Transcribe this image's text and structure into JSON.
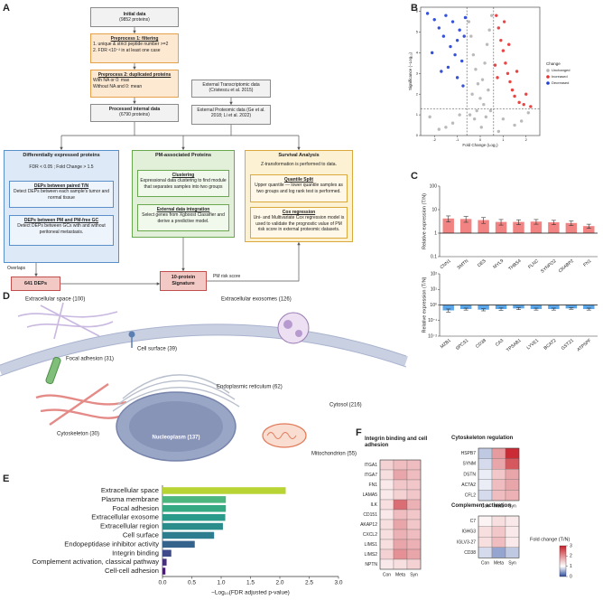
{
  "panel_labels": [
    "A",
    "B",
    "C",
    "D",
    "E",
    "F"
  ],
  "flowchart": {
    "initial": {
      "title": "Initial data",
      "count": "(9852 proteins)"
    },
    "preprocess1": {
      "title": "Preprocess 1: filtering",
      "steps": [
        "1. unique & strict peptide number >=2",
        "2. FDR <10⁻² in at least one case"
      ]
    },
    "preprocess2": {
      "title": "Preprocess 2: duplicated proteins",
      "steps": [
        "With NA or 0: max",
        "Without NA and 0: mean"
      ]
    },
    "external_transcriptomic": "External Transcriptomic data (Cristescu et al. 2015)",
    "processed": {
      "title": "Processed internal data",
      "count": "(6790 proteins)"
    },
    "external_proteomic": "External Proteomic data (Ge et al. 2018; Li et al. 2022)",
    "dep": {
      "title": "Differentially expressed proteins",
      "criteria": "FDR < 0.05 ; Fold Change > 1.5",
      "boxes": [
        {
          "title": "DEPs between paired T/N",
          "text": "Detect DEPs between each sample's tumor and normal tissue"
        },
        {
          "title": "DEPs between PM and PM-free GC",
          "text": "Detect DEPs between GCs with and without peritoneal metastasis."
        }
      ]
    },
    "pm": {
      "title": "PM-associated Proteins",
      "boxes": [
        {
          "title": "Clustering",
          "text": "Expressional data clustering to find module that separates samples into two groups"
        },
        {
          "title": "External data integration",
          "text": "Select genes from Xgboost Classifier and derive a predictive model."
        }
      ]
    },
    "survival": {
      "title": "Survival Analysis",
      "text": "Z-transformation is performed to data.",
      "boxes": [
        {
          "title": "Quantile Split",
          "text": "Upper quantile — lower quantile samples as two groups and log rank test is performed."
        },
        {
          "title": "Cox regression",
          "text": "Uni- and Multivariate Cox regression model is used to validate the prognostic value of PM risk score in external proteomic datasets."
        }
      ]
    },
    "overlaps": "Overlaps",
    "deps": "641 DEPs",
    "signature": "10-protein Signature",
    "risk_score": "PM risk score"
  },
  "cell_diagram": {
    "labels": [
      "Extracellular space (100)",
      "Extracellular exosomes (126)",
      "Cell surface (39)",
      "Focal adhesion (31)",
      "Endoplasmic reticulum (62)",
      "Cytosol (216)",
      "Cytoskeleton (30)",
      "Nucleoplasm (137)",
      "Mitochondrion (55)"
    ]
  },
  "chart_data": [
    {
      "type": "scatter",
      "xlabel": "Fold Change (Log₂)",
      "ylabel": "Significance (−Log₁₀)",
      "xlim": [
        -2.6,
        2.6
      ],
      "xticks": [
        -2,
        -1,
        0,
        1,
        2
      ],
      "ylim": [
        0,
        6.2
      ],
      "yticks": [
        0,
        1,
        2,
        3,
        4,
        5,
        6
      ],
      "thresholds": {
        "x": [
          -0.585,
          0.585
        ],
        "y": 1.3
      },
      "legend_title": "Change",
      "legend": "right",
      "series": [
        {
          "name": "Unchanged",
          "color": "#b3b3b3",
          "x": [
            -0.5,
            -0.4,
            -0.3,
            -0.2,
            -0.1,
            0,
            0.1,
            0.2,
            0.3,
            0.4,
            0.5,
            -0.45,
            -0.25,
            0.05,
            0.25,
            0.45,
            -1.2,
            -1.8,
            -2.2,
            1.0,
            1.5,
            2.1,
            -0.9,
            0.8,
            -0.35,
            0.35,
            -0.15,
            0.15,
            -1.5,
            1.8
          ],
          "y": [
            5.5,
            4.8,
            3.9,
            3.2,
            2.5,
            1.8,
            2.7,
            3.5,
            4.4,
            5.1,
            5.8,
            1.0,
            0.8,
            0.4,
            0.9,
            1.2,
            0.6,
            0.3,
            0.9,
            0.8,
            0.5,
            1.1,
            1.0,
            0.2,
            2.0,
            2.2,
            1.2,
            1.5,
            0.4,
            0.7
          ]
        },
        {
          "name": "Increased",
          "color": "#e8302f",
          "x": [
            0.7,
            0.8,
            0.9,
            1.0,
            1.1,
            1.2,
            1.3,
            1.4,
            1.5,
            1.7,
            1.9,
            2.2,
            0.75,
            1.05,
            1.25,
            0.65,
            1.6,
            2.0
          ],
          "y": [
            5.8,
            5.2,
            4.6,
            4.1,
            3.5,
            3.0,
            2.6,
            2.2,
            1.9,
            1.6,
            1.5,
            1.4,
            2.8,
            5.5,
            4.4,
            3.4,
            3.1,
            2.0
          ]
        },
        {
          "name": "Decreased",
          "color": "#1f3fd4",
          "x": [
            -2.3,
            -2.0,
            -1.8,
            -1.6,
            -1.5,
            -1.3,
            -1.2,
            -1.1,
            -1.0,
            -0.9,
            -0.8,
            -0.7,
            -2.1,
            -1.7,
            -1.4,
            -1.0,
            -0.75,
            -0.65
          ],
          "y": [
            5.9,
            5.6,
            5.2,
            4.8,
            5.8,
            4.3,
            5.5,
            3.9,
            4.6,
            5.1,
            3.6,
            4.8,
            4.0,
            3.1,
            3.3,
            2.8,
            2.4,
            5.7
          ]
        }
      ]
    },
    {
      "type": "bar",
      "ylabel": "Relative expression (T/N)",
      "log_scale": true,
      "ylim": [
        0.1,
        100
      ],
      "yticks": [
        0.1,
        1,
        10,
        100
      ],
      "baseline": 1,
      "color": "#ef6f6c",
      "categories": [
        "CNN1",
        "SMTN",
        "DES",
        "MYL9",
        "THBS4",
        "FLNC",
        "SYNPO2",
        "CRABP2",
        "FN1"
      ],
      "values": [
        4.2,
        4.0,
        3.6,
        3.0,
        3.0,
        3.1,
        2.9,
        2.7,
        2.0
      ],
      "errors": [
        1.2,
        1.1,
        1.0,
        0.8,
        0.7,
        0.7,
        0.6,
        0.6,
        0.4
      ]
    },
    {
      "type": "bar",
      "ylabel": "Relative expression (T/N)",
      "log_scale": true,
      "ylim": [
        0.01,
        100
      ],
      "yticks": [
        {
          "value": 0.01,
          "label": "10⁻²"
        },
        {
          "value": 0.1,
          "label": "10⁻¹"
        },
        {
          "value": 1,
          "label": "10⁰"
        },
        {
          "value": 10,
          "label": "10¹"
        },
        {
          "value": 100,
          "label": "10²"
        }
      ],
      "baseline": 1,
      "color": "#3d97e6",
      "categories": [
        "MZB1",
        "SPCS1",
        "CD38",
        "CA3",
        "TPSAB1",
        "LYVE1",
        "BCAT2",
        "GSTZ1",
        "ATP5PF"
      ],
      "values": [
        0.45,
        0.55,
        0.5,
        0.55,
        0.6,
        0.55,
        0.55,
        0.6,
        0.55
      ],
      "errors": [
        0.1,
        0.08,
        0.08,
        0.09,
        0.1,
        0.08,
        0.08,
        0.07,
        0.08
      ]
    },
    {
      "type": "hbar",
      "xlabel": "−Log₁₀(FDR adjusted p-value)",
      "categories": [
        "Extracellular space",
        "Plasma membrane",
        "Focal adhesion",
        "Extracellular exosome",
        "Extracellular region",
        "Cell surface",
        "Endopeptidase inhibitor activity",
        "Integrin binding",
        "Complement activation, classical pathway",
        "Cell-cell adhesion"
      ],
      "values": [
        2.1,
        1.08,
        1.08,
        1.07,
        1.03,
        0.88,
        0.55,
        0.15,
        0.07,
        0.05
      ],
      "colors": [
        "#b8d334",
        "#4db57e",
        "#35a982",
        "#2a9a8a",
        "#2a8d8c",
        "#2d7d8e",
        "#36638c",
        "#3e4a89",
        "#46307e",
        "#481c6e"
      ],
      "xlim": [
        0,
        3
      ],
      "xticks": [
        {
          "value": 0,
          "label": "0.0"
        },
        0.5,
        {
          "value": 1,
          "label": "1.0"
        },
        1.5,
        {
          "value": 2,
          "label": "2.0"
        },
        2.5,
        {
          "value": 3,
          "label": "3.0"
        }
      ]
    },
    {
      "type": "heatmap",
      "columns": [
        "Con",
        "Meta",
        "Syn"
      ],
      "groups": [
        {
          "title": "Integrin binding and cell adhesion",
          "rows": [
            "ITGA1",
            "ITGA7",
            "FN1",
            "LAMA5",
            "ILK",
            "CD151",
            "AKAP12",
            "CXCL2",
            "LIMS1",
            "LIMS2",
            "NPTN"
          ],
          "values": [
            [
              1.4,
              1.6,
              1.6
            ],
            [
              1.3,
              1.8,
              1.6
            ],
            [
              1.2,
              1.5,
              1.5
            ],
            [
              1.2,
              1.4,
              1.5
            ],
            [
              1.3,
              2.3,
              1.7
            ],
            [
              1.2,
              1.6,
              1.5
            ],
            [
              1.3,
              1.8,
              1.5
            ],
            [
              1.3,
              1.7,
              1.6
            ],
            [
              1.3,
              1.8,
              1.7
            ],
            [
              1.4,
              2.0,
              1.8
            ],
            [
              1.2,
              1.3,
              1.4
            ]
          ]
        },
        {
          "title": "Cytoskeleton regulation",
          "rows": [
            "HSPB7",
            "SYNM",
            "DSTN",
            "ACTA2",
            "CFL2"
          ],
          "values": [
            [
              0.7,
              1.9,
              2.9
            ],
            [
              0.8,
              1.8,
              2.5
            ],
            [
              0.9,
              1.5,
              1.8
            ],
            [
              0.9,
              1.6,
              1.8
            ],
            [
              0.8,
              1.6,
              1.7
            ]
          ]
        },
        {
          "title": "Complement activation",
          "rows": [
            "C7",
            "IGHG3",
            "IGLV3-27",
            "CD38"
          ],
          "values": [
            [
              1.1,
              1.3,
              1.2
            ],
            [
              1.3,
              1.5,
              1.2
            ],
            [
              1.3,
              1.6,
              1.2
            ],
            [
              0.8,
              0.5,
              0.7
            ]
          ]
        }
      ],
      "colorbar": {
        "label": "Fold change (T/N)",
        "lim": [
          0,
          3
        ],
        "ticks": [
          0,
          1,
          2,
          3
        ],
        "center": 1,
        "colors": [
          "#2c4a9e",
          "#ffffff",
          "#c8202a"
        ]
      }
    }
  ]
}
